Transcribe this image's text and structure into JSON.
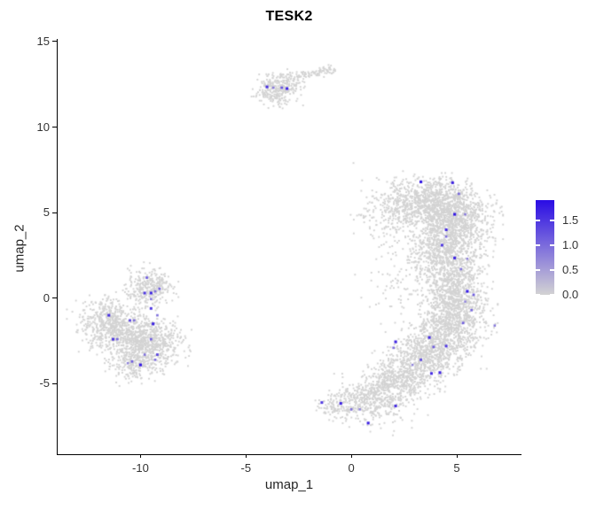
{
  "chart_data": {
    "type": "scatter",
    "title": "TESK2",
    "xlabel": "umap_1",
    "ylabel": "umap_2",
    "x_ticks": [
      -10,
      -5,
      0,
      5
    ],
    "y_ticks": [
      15,
      10,
      5,
      0,
      -5
    ],
    "x_range": [
      -13.95,
      8.07
    ],
    "y_range": [
      -9.12,
      14.97
    ],
    "grid": false,
    "background": "#ffffff",
    "point_color_low": "#d3d3d3",
    "point_color_high": "#2a0ce4",
    "seed": 42,
    "legend": {
      "position": "right",
      "max": 1.9,
      "min": 0.0,
      "ticks": [
        {
          "label": "1.5",
          "value": 1.5
        },
        {
          "label": "1.0",
          "value": 1.0
        },
        {
          "label": "0.5",
          "value": 0.5
        },
        {
          "label": "0.0",
          "value": 0.0
        }
      ]
    },
    "background_clusters": [
      {
        "n": 240,
        "c": [
          -3.6,
          12.25
        ],
        "sd": [
          0.5,
          0.42
        ]
      },
      {
        "n": 60,
        "c": [
          -3.0,
          12.6
        ],
        "sd": [
          0.35,
          0.3
        ]
      },
      {
        "n": 12,
        "c": [
          -3.25,
          11.5
        ],
        "sd": [
          0.18,
          0.15
        ]
      },
      {
        "n": 650,
        "c": [
          3.0,
          5.4
        ],
        "sd": [
          1.0,
          0.75
        ]
      },
      {
        "n": 850,
        "c": [
          4.9,
          4.7
        ],
        "sd": [
          0.85,
          0.85
        ]
      },
      {
        "n": 200,
        "c": [
          4.2,
          6.1
        ],
        "sd": [
          0.75,
          0.45
        ]
      },
      {
        "n": 560,
        "c": [
          4.4,
          2.9
        ],
        "sd": [
          0.9,
          0.75
        ]
      },
      {
        "n": 520,
        "c": [
          4.7,
          1.2
        ],
        "sd": [
          0.75,
          0.8
        ]
      },
      {
        "n": 560,
        "c": [
          5.0,
          -0.5
        ],
        "sd": [
          0.72,
          0.8
        ]
      },
      {
        "n": 560,
        "c": [
          4.5,
          -2.1
        ],
        "sd": [
          0.8,
          0.75
        ]
      },
      {
        "n": 520,
        "c": [
          3.5,
          -3.5
        ],
        "sd": [
          0.8,
          0.65
        ]
      },
      {
        "n": 450,
        "c": [
          2.3,
          -4.7
        ],
        "sd": [
          0.8,
          0.6
        ]
      },
      {
        "n": 420,
        "c": [
          1.0,
          -5.9
        ],
        "sd": [
          0.85,
          0.55
        ]
      },
      {
        "n": 110,
        "c": [
          -0.7,
          -6.3
        ],
        "sd": [
          0.5,
          0.38
        ]
      },
      {
        "n": 80,
        "c": [
          2.2,
          0.6
        ],
        "sd": [
          0.75,
          1.2
        ]
      },
      {
        "n": 55,
        "c": [
          1.6,
          4.2
        ],
        "sd": [
          0.55,
          0.9
        ]
      },
      {
        "n": 40,
        "c": [
          1.6,
          -6.9
        ],
        "sd": [
          0.9,
          0.45
        ]
      },
      {
        "n": 260,
        "c": [
          -9.55,
          0.75
        ],
        "sd": [
          0.5,
          0.5
        ]
      },
      {
        "n": 60,
        "c": [
          -10.1,
          0.1
        ],
        "sd": [
          0.45,
          0.4
        ]
      },
      {
        "n": 420,
        "c": [
          -11.6,
          -1.4
        ],
        "sd": [
          0.7,
          0.65
        ]
      },
      {
        "n": 600,
        "c": [
          -10.4,
          -2.3
        ],
        "sd": [
          0.8,
          0.75
        ]
      },
      {
        "n": 320,
        "c": [
          -9.2,
          -2.7
        ],
        "sd": [
          0.6,
          0.65
        ]
      },
      {
        "n": 170,
        "c": [
          -10.3,
          -4.0
        ],
        "sd": [
          0.55,
          0.42
        ]
      }
    ],
    "background_strips": [
      {
        "n": 90,
        "from": [
          -2.55,
          12.95
        ],
        "to": [
          -0.85,
          13.4
        ],
        "sd": 0.13
      },
      {
        "n": 6,
        "from": [
          -0.5,
          5.0
        ],
        "to": [
          0.75,
          4.75
        ],
        "sd": 0.04
      }
    ],
    "background_singles": [
      [
        0.1,
        7.9
      ],
      [
        0.9,
        -7.8
      ],
      [
        1.4,
        -7.6
      ],
      [
        6.7,
        -0.6
      ],
      [
        6.9,
        -2.0
      ]
    ],
    "highlighted_points": [
      [
        -4.0,
        12.35,
        0.85
      ],
      [
        -3.7,
        12.3,
        0.45
      ],
      [
        -3.3,
        12.3,
        0.65
      ],
      [
        -3.05,
        12.25,
        0.9
      ],
      [
        3.3,
        6.8,
        0.95
      ],
      [
        4.8,
        6.75,
        0.9
      ],
      [
        5.1,
        6.1,
        0.55
      ],
      [
        4.9,
        4.9,
        0.95
      ],
      [
        5.4,
        4.9,
        0.45
      ],
      [
        4.5,
        4.0,
        0.85
      ],
      [
        4.5,
        3.6,
        0.5
      ],
      [
        4.3,
        3.1,
        0.8
      ],
      [
        4.9,
        2.35,
        0.9
      ],
      [
        5.5,
        2.3,
        0.4
      ],
      [
        5.2,
        1.7,
        0.5
      ],
      [
        5.5,
        0.4,
        0.95
      ],
      [
        5.8,
        0.2,
        0.6
      ],
      [
        5.4,
        -0.2,
        0.4
      ],
      [
        5.7,
        -0.7,
        0.55
      ],
      [
        5.3,
        -1.45,
        0.6
      ],
      [
        6.8,
        -1.6,
        0.45
      ],
      [
        2.1,
        -2.55,
        0.9
      ],
      [
        2.0,
        -2.9,
        0.5
      ],
      [
        3.7,
        -2.3,
        0.85
      ],
      [
        3.9,
        -2.85,
        0.6
      ],
      [
        4.5,
        -2.8,
        0.8
      ],
      [
        3.3,
        -3.6,
        0.7
      ],
      [
        2.9,
        -3.9,
        0.4
      ],
      [
        3.8,
        -4.4,
        0.85
      ],
      [
        4.2,
        -4.35,
        0.9
      ],
      [
        -1.4,
        -6.1,
        0.8
      ],
      [
        -0.5,
        -6.15,
        0.9
      ],
      [
        0.0,
        -6.5,
        0.5
      ],
      [
        0.4,
        -6.5,
        0.4
      ],
      [
        0.8,
        -7.3,
        0.9
      ],
      [
        2.1,
        -6.3,
        0.85
      ],
      [
        -9.7,
        1.2,
        0.6
      ],
      [
        -9.8,
        0.3,
        0.8
      ],
      [
        -9.5,
        0.3,
        0.9
      ],
      [
        -9.3,
        0.4,
        0.5
      ],
      [
        -9.1,
        0.55,
        0.6
      ],
      [
        -9.5,
        -0.05,
        0.45
      ],
      [
        -9.5,
        -0.6,
        0.8
      ],
      [
        -9.2,
        -1.0,
        0.5
      ],
      [
        -11.5,
        -1.0,
        0.85
      ],
      [
        -10.5,
        -1.3,
        0.7
      ],
      [
        -10.3,
        -1.3,
        0.5
      ],
      [
        -9.4,
        -1.5,
        0.9
      ],
      [
        -11.3,
        -2.4,
        0.8
      ],
      [
        -11.1,
        -2.4,
        0.55
      ],
      [
        -9.5,
        -2.4,
        0.6
      ],
      [
        -9.8,
        -3.3,
        0.5
      ],
      [
        -9.2,
        -3.3,
        0.7
      ],
      [
        -10.4,
        -3.7,
        0.6
      ],
      [
        -10.0,
        -3.9,
        0.95
      ],
      [
        -10.6,
        -3.8,
        0.4
      ],
      [
        -9.3,
        -3.6,
        0.5
      ]
    ]
  }
}
